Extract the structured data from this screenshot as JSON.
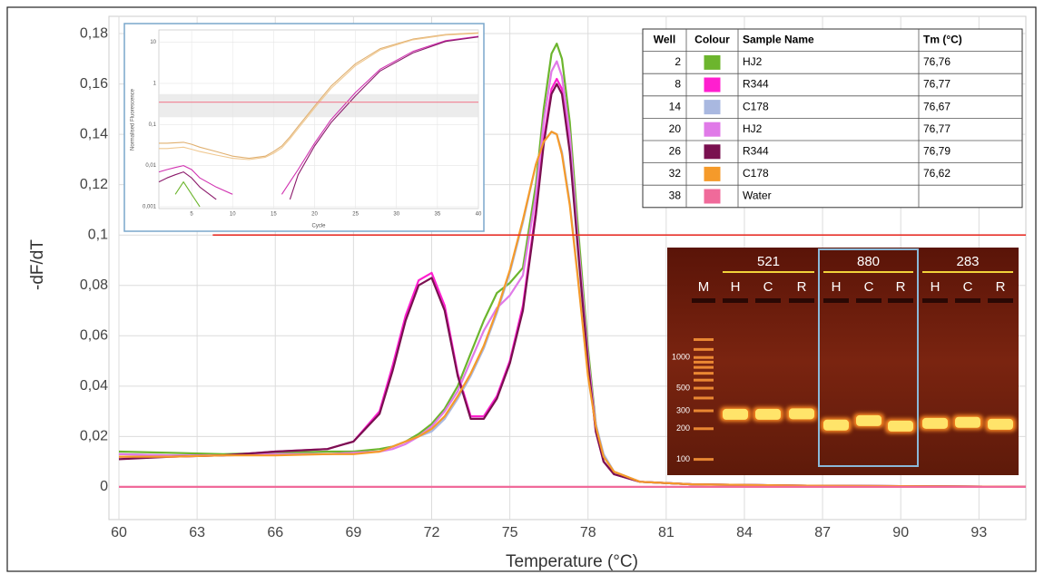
{
  "chart_data": [
    {
      "type": "line",
      "xlabel": "Temperature (°C)",
      "ylabel": "-dF/dT",
      "xlim": [
        60,
        94.8
      ],
      "ylim": [
        -0.013,
        0.187
      ],
      "xticks": [
        60,
        63,
        66,
        69,
        72,
        75,
        78,
        81,
        84,
        87,
        90,
        93
      ],
      "yticks": [
        0,
        {
          "value": 0.02,
          "label": "0,02"
        },
        {
          "value": 0.04,
          "label": "0,04"
        },
        {
          "value": 0.06,
          "label": "0,06"
        },
        {
          "value": 0.08,
          "label": "0,08"
        },
        {
          "value": 0.1,
          "label": "0,1"
        },
        {
          "value": 0.12,
          "label": "0,12"
        },
        {
          "value": 0.14,
          "label": "0,14"
        },
        {
          "value": 0.16,
          "label": "0,16"
        },
        {
          "value": 0.18,
          "label": "0,18"
        }
      ],
      "grid": true,
      "threshold": {
        "value": 0.1,
        "x_start": 63.6,
        "color": "#e8322a"
      },
      "x": [
        60,
        62,
        64,
        66,
        68,
        69,
        70,
        70.5,
        71,
        71.5,
        72,
        72.5,
        73,
        73.5,
        74,
        74.5,
        75,
        75.5,
        76,
        76.3,
        76.6,
        76.8,
        77,
        77.3,
        77.6,
        78,
        78.3,
        78.6,
        79,
        80,
        82,
        86,
        90,
        94.8
      ],
      "series": [
        {
          "well": "2",
          "name": "HJ2",
          "tm": "76,76",
          "color": "#6cb52d",
          "values": [
            0.014,
            0.0135,
            0.013,
            0.0135,
            0.014,
            0.014,
            0.015,
            0.016,
            0.018,
            0.021,
            0.025,
            0.031,
            0.04,
            0.053,
            0.066,
            0.077,
            0.081,
            0.087,
            0.12,
            0.15,
            0.172,
            0.176,
            0.17,
            0.145,
            0.105,
            0.055,
            0.025,
            0.01,
            0.005,
            0.002,
            0.001,
            0.0005,
            0.0003,
            0
          ]
        },
        {
          "well": "8",
          "name": "R344",
          "tm": "76,77",
          "color": "#ff1fcf",
          "values": [
            0.012,
            0.012,
            0.0125,
            0.014,
            0.015,
            0.018,
            0.03,
            0.048,
            0.068,
            0.082,
            0.085,
            0.072,
            0.045,
            0.028,
            0.028,
            0.036,
            0.05,
            0.072,
            0.11,
            0.138,
            0.158,
            0.162,
            0.158,
            0.135,
            0.098,
            0.05,
            0.022,
            0.01,
            0.005,
            0.002,
            0.001,
            0.0005,
            0.0003,
            0
          ]
        },
        {
          "well": "14",
          "name": "C178",
          "tm": "76,67",
          "color": "#a9b8e0",
          "values": [
            0.013,
            0.0125,
            0.0125,
            0.013,
            0.013,
            0.0135,
            0.014,
            0.016,
            0.018,
            0.02,
            0.022,
            0.027,
            0.035,
            0.044,
            0.055,
            0.069,
            0.085,
            0.105,
            0.128,
            0.137,
            0.141,
            0.14,
            0.133,
            0.113,
            0.085,
            0.045,
            0.025,
            0.013,
            0.006,
            0.002,
            0.001,
            0.0005,
            0.0003,
            0
          ]
        },
        {
          "well": "20",
          "name": "HJ2",
          "tm": "76,77",
          "color": "#e07ae8",
          "values": [
            0.013,
            0.0125,
            0.0125,
            0.013,
            0.013,
            0.0135,
            0.014,
            0.015,
            0.017,
            0.02,
            0.024,
            0.03,
            0.038,
            0.05,
            0.062,
            0.071,
            0.076,
            0.084,
            0.116,
            0.145,
            0.165,
            0.169,
            0.163,
            0.14,
            0.1,
            0.052,
            0.024,
            0.01,
            0.005,
            0.002,
            0.001,
            0.0005,
            0.0003,
            0
          ]
        },
        {
          "well": "26",
          "name": "R344",
          "tm": "76,79",
          "color": "#7a1050",
          "values": [
            0.011,
            0.012,
            0.0125,
            0.014,
            0.015,
            0.018,
            0.029,
            0.046,
            0.066,
            0.08,
            0.083,
            0.07,
            0.044,
            0.027,
            0.027,
            0.035,
            0.049,
            0.07,
            0.108,
            0.136,
            0.156,
            0.16,
            0.156,
            0.133,
            0.096,
            0.049,
            0.022,
            0.01,
            0.005,
            0.002,
            0.001,
            0.0005,
            0.0003,
            0
          ]
        },
        {
          "well": "32",
          "name": "C178",
          "tm": "76,62",
          "color": "#f59a2a",
          "values": [
            0.012,
            0.012,
            0.0125,
            0.0125,
            0.013,
            0.013,
            0.014,
            0.016,
            0.018,
            0.02,
            0.023,
            0.028,
            0.036,
            0.045,
            0.056,
            0.07,
            0.086,
            0.106,
            0.128,
            0.137,
            0.141,
            0.14,
            0.132,
            0.112,
            0.084,
            0.044,
            0.024,
            0.012,
            0.006,
            0.002,
            0.001,
            0.0005,
            0.0003,
            0
          ]
        },
        {
          "well": "38",
          "name": "Water",
          "color": "#f06a9a",
          "values": [
            0,
            0,
            0,
            0,
            0,
            0,
            0,
            0,
            0,
            0,
            0,
            0,
            0,
            0,
            0,
            0,
            0,
            0,
            0,
            0,
            0,
            0,
            0,
            0,
            0,
            0,
            0,
            0,
            0,
            0,
            0,
            0,
            0,
            0
          ]
        }
      ]
    },
    {
      "type": "line",
      "xlabel": "Cycle",
      "ylabel": "Normalised Fluorescence",
      "log_y": true,
      "xlim": [
        1,
        40
      ],
      "ylim": [
        0.0009,
        20
      ],
      "xticks": [
        5,
        10,
        15,
        20,
        25,
        30,
        35,
        40
      ],
      "yticks": [
        {
          "value": 0.001,
          "label": "0,001"
        },
        {
          "value": 0.01,
          "label": "0,01"
        },
        {
          "value": 0.1,
          "label": "0,1"
        },
        1,
        10
      ],
      "grid": true,
      "threshold": {
        "value": 0.35,
        "band": [
          0.15,
          0.55
        ],
        "color": "#f08a9a"
      },
      "x": [
        1,
        2,
        3,
        4,
        5,
        6,
        8,
        10,
        12,
        14,
        15,
        16,
        17,
        18,
        20,
        22,
        25,
        28,
        32,
        36,
        40
      ],
      "series": [
        {
          "color": "#e0b070",
          "values": [
            0.035,
            0.035,
            0.036,
            0.037,
            0.033,
            0.028,
            0.022,
            0.017,
            0.015,
            0.017,
            0.022,
            0.03,
            0.05,
            0.09,
            0.28,
            0.85,
            3,
            7,
            12,
            15.5,
            17
          ]
        },
        {
          "color": "#f0c890",
          "values": [
            0.026,
            0.026,
            0.027,
            0.028,
            0.025,
            0.022,
            0.018,
            0.015,
            0.014,
            0.016,
            0.02,
            0.027,
            0.045,
            0.08,
            0.25,
            0.75,
            2.7,
            6.5,
            11.5,
            15,
            16.5
          ]
        },
        {
          "color": "#d030b0",
          "values": [
            0.007,
            0.008,
            0.009,
            0.01,
            0.008,
            0.005,
            0.003,
            0.002,
            null,
            null,
            null,
            0.002,
            0.004,
            0.008,
            0.035,
            0.13,
            0.6,
            2.2,
            6,
            11,
            14
          ]
        },
        {
          "color": "#8b1a6b",
          "values": [
            0.004,
            0.005,
            0.006,
            0.007,
            0.005,
            0.003,
            0.0015,
            null,
            null,
            null,
            null,
            null,
            0.0015,
            0.006,
            0.03,
            0.11,
            0.5,
            2,
            5.5,
            10.5,
            13.5
          ]
        },
        {
          "color": "#6cb52d",
          "values": [
            null,
            null,
            0.002,
            0.004,
            0.002,
            0.001,
            null,
            null,
            null,
            null,
            null,
            null,
            null,
            null,
            null,
            null,
            null,
            null,
            null,
            null,
            null
          ]
        }
      ]
    }
  ],
  "table": {
    "header": [
      "Well",
      "Colour",
      "Sample Name",
      "Tm (°C)"
    ]
  },
  "gel": {
    "marker": "M",
    "ylim": [
      70,
      12000
    ],
    "log": true,
    "ladder_labels": [
      1000,
      500,
      300,
      200,
      100
    ],
    "ladder": [
      100,
      200,
      300,
      400,
      500,
      600,
      700,
      800,
      900,
      1000,
      1200,
      1500
    ],
    "highlight": 1,
    "groups": [
      {
        "label": "521",
        "lanes": [
          "H",
          "C",
          "R"
        ],
        "bands": [
          277,
          277,
          280
        ]
      },
      {
        "label": "880",
        "lanes": [
          "H",
          "C",
          "R"
        ],
        "bands": [
          217,
          240,
          212
        ]
      },
      {
        "label": "283",
        "lanes": [
          "H",
          "C",
          "R"
        ],
        "bands": [
          226,
          231,
          221
        ]
      }
    ]
  }
}
